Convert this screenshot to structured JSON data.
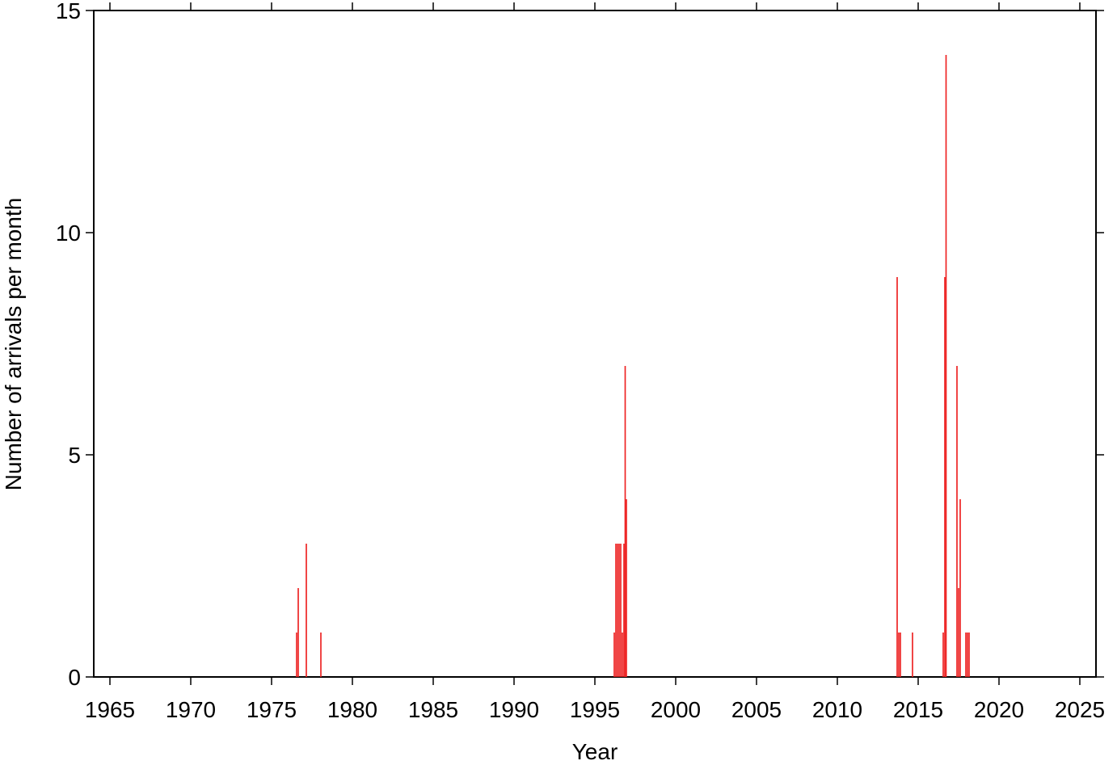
{
  "chart_data": {
    "type": "bar",
    "xlabel": "Year",
    "ylabel": "Number of arrivals per month",
    "x": [
      1976.55,
      1976.65,
      1977.15,
      1978.05,
      1996.2,
      1996.3,
      1996.4,
      1996.5,
      1996.6,
      1996.7,
      1996.8,
      1996.875,
      1996.95,
      2013.7,
      2013.8,
      2013.9,
      2014.65,
      2016.55,
      2016.65,
      2016.725,
      2017.4,
      2017.5,
      2017.6,
      2017.95,
      2018.05,
      2018.15
    ],
    "values": [
      1,
      2,
      3,
      1,
      1,
      3,
      3,
      3,
      3,
      1,
      3,
      7,
      4,
      9,
      1,
      1,
      1,
      1,
      9,
      14,
      7,
      2,
      4,
      1,
      1,
      1
    ],
    "color": "#ee2222",
    "xlim": [
      1964,
      2026
    ],
    "xticks": [
      1965,
      1970,
      1975,
      1980,
      1985,
      1990,
      1995,
      2000,
      2005,
      2010,
      2015,
      2020,
      2025
    ],
    "ylim": [
      0,
      15
    ],
    "yticks": [
      0,
      5,
      10,
      15
    ]
  }
}
